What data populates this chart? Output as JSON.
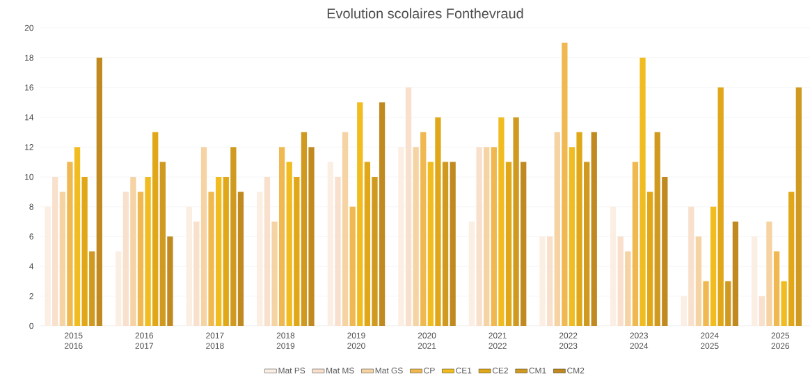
{
  "chart_data": {
    "type": "bar",
    "title": "Evolution scolaires Fonthevraud",
    "categories": [
      "2015 2016",
      "2016 2017",
      "2017 2018",
      "2018 2019",
      "2019 2020",
      "2020 2021",
      "2021 2022",
      "2022 2023",
      "2023 2024",
      "2024 2025",
      "2025 2026"
    ],
    "series": [
      {
        "name": "Mat PS",
        "color": "#fbeee3",
        "values": [
          8,
          5,
          8,
          9,
          11,
          12,
          7,
          6,
          8,
          2,
          6
        ]
      },
      {
        "name": "Mat MS",
        "color": "#f8e0cc",
        "values": [
          10,
          9,
          7,
          10,
          10,
          16,
          12,
          6,
          6,
          8,
          2
        ]
      },
      {
        "name": "Mat GS",
        "color": "#f5d3a3",
        "values": [
          9,
          10,
          12,
          7,
          13,
          12,
          12,
          13,
          5,
          6,
          7
        ]
      },
      {
        "name": "CP",
        "color": "#f0b850",
        "values": [
          11,
          9,
          9,
          12,
          8,
          13,
          12,
          19,
          11,
          3,
          5
        ]
      },
      {
        "name": "CE1",
        "color": "#f0bc20",
        "values": [
          12,
          10,
          10,
          11,
          15,
          11,
          14,
          12,
          18,
          8,
          3
        ]
      },
      {
        "name": "CE2",
        "color": "#e0a818",
        "values": [
          10,
          13,
          10,
          10,
          11,
          14,
          11,
          13,
          9,
          16,
          9
        ]
      },
      {
        "name": "CM1",
        "color": "#d09a20",
        "values": [
          5,
          11,
          12,
          13,
          10,
          11,
          14,
          11,
          13,
          3,
          16
        ]
      },
      {
        "name": "CM2",
        "color": "#c08a20",
        "values": [
          18,
          6,
          9,
          12,
          15,
          11,
          11,
          13,
          10,
          7,
          null
        ]
      }
    ],
    "ylim": [
      0,
      20
    ],
    "yticks": [
      0,
      2,
      4,
      6,
      8,
      10,
      12,
      14,
      16,
      18,
      20
    ],
    "grid": "y",
    "legend": "bottom"
  }
}
